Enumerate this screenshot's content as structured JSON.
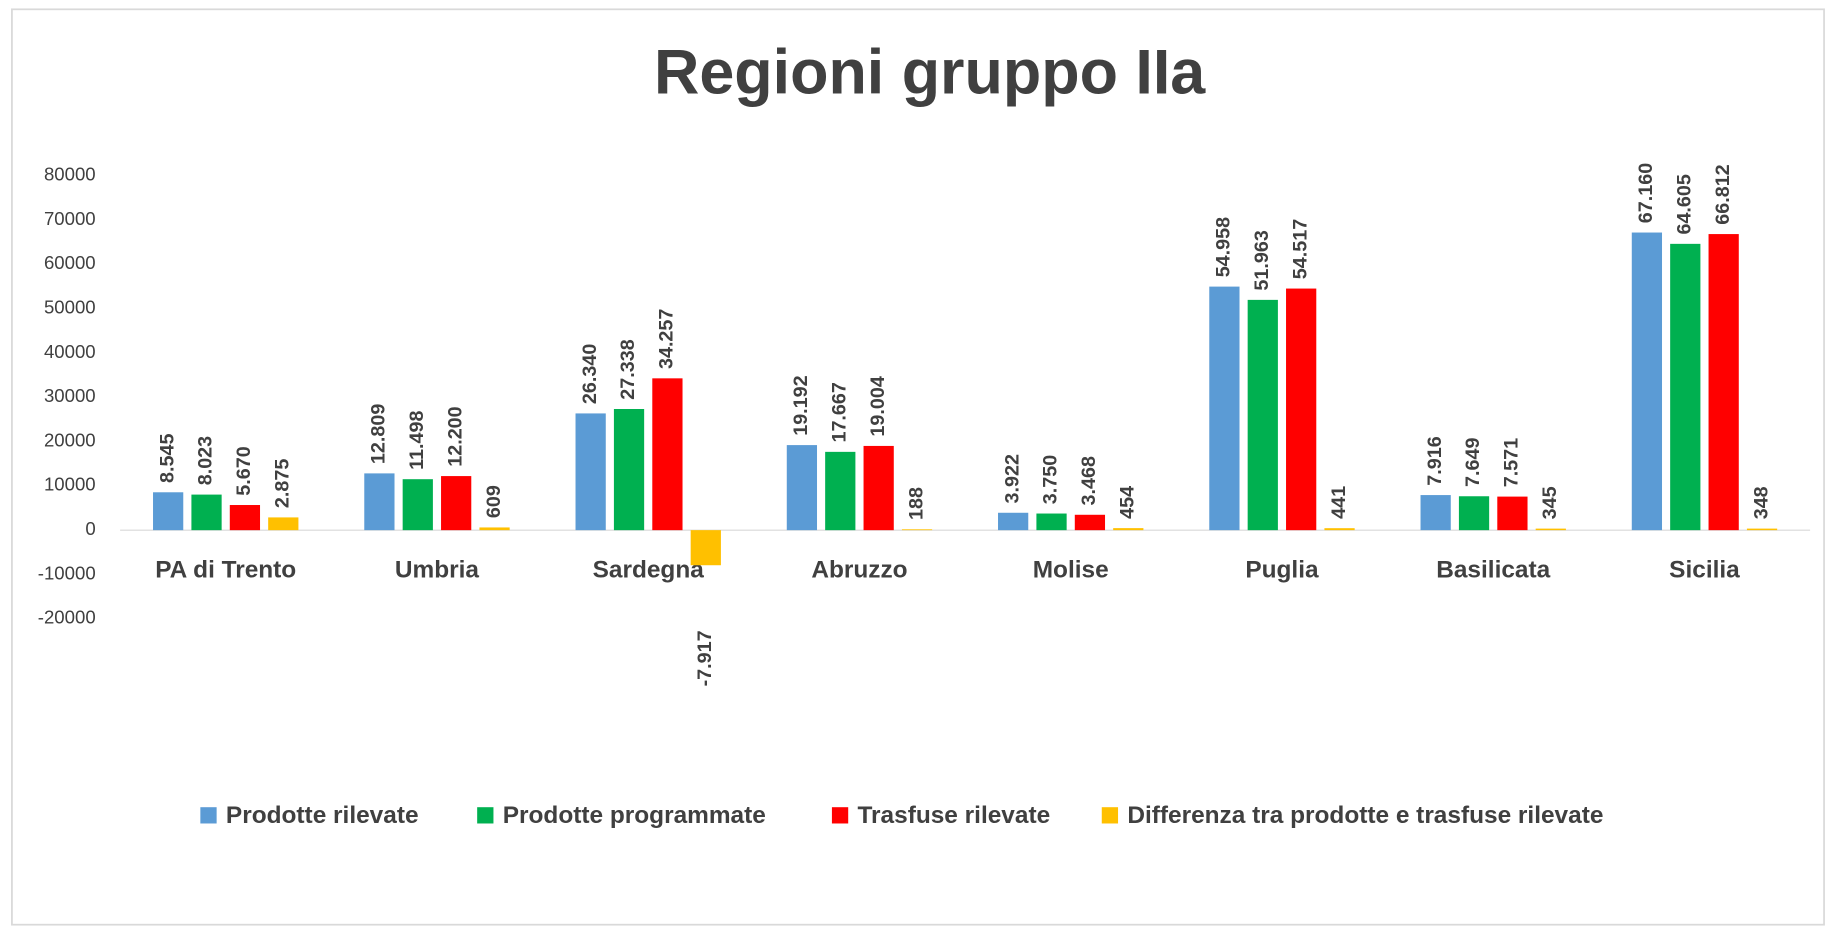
{
  "chart_data": {
    "type": "bar",
    "title": "Regioni gruppo IIa",
    "categories": [
      "PA di Trento",
      "Umbria",
      "Sardegna",
      "Abruzzo",
      "Molise",
      "Puglia",
      "Basilicata",
      "Sicilia"
    ],
    "series": [
      {
        "name": "Prodotte rilevate",
        "color": "#5b9bd5",
        "values": [
          8545,
          12809,
          26340,
          19192,
          3922,
          54958,
          7916,
          67160
        ],
        "value_labels": [
          "8.545",
          "12.809",
          "26.340",
          "19.192",
          "3.922",
          "54.958",
          "7.916",
          "67.160"
        ]
      },
      {
        "name": "Prodotte programmate",
        "color": "#00b050",
        "values": [
          8023,
          11498,
          27338,
          17667,
          3750,
          51963,
          7649,
          64605
        ],
        "value_labels": [
          "8.023",
          "11.498",
          "27.338",
          "17.667",
          "3.750",
          "51.963",
          "7.649",
          "64.605"
        ]
      },
      {
        "name": "Trasfuse rilevate",
        "color": "#ff0000",
        "values": [
          5670,
          12200,
          34257,
          19004,
          3468,
          54517,
          7571,
          66812
        ],
        "value_labels": [
          "5.670",
          "12.200",
          "34.257",
          "19.004",
          "3.468",
          "54.517",
          "7.571",
          "66.812"
        ]
      },
      {
        "name": "Differenza tra prodotte e trasfuse rilevate",
        "color": "#ffc000",
        "values": [
          2875,
          609,
          -7917,
          188,
          454,
          441,
          345,
          348
        ],
        "value_labels": [
          "2.875",
          "609",
          "-7.917",
          "188",
          "454",
          "441",
          "345",
          "348"
        ]
      }
    ],
    "ylim": [
      -20000,
      80000
    ],
    "yticks": [
      -20000,
      -10000,
      0,
      10000,
      20000,
      30000,
      40000,
      50000,
      60000,
      70000,
      80000
    ],
    "grid": false,
    "legend": "bottom"
  }
}
